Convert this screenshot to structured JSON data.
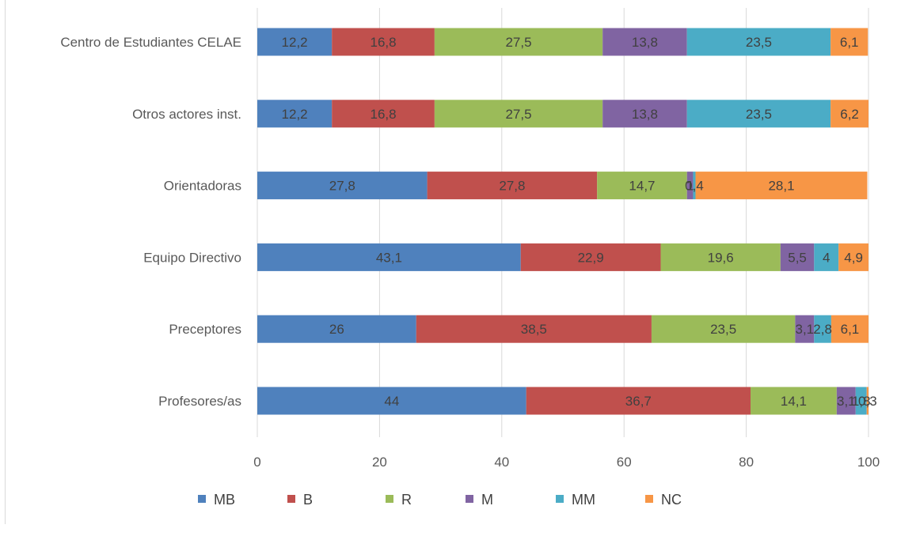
{
  "chart_data": {
    "type": "bar",
    "orientation": "horizontal",
    "stacked": true,
    "categories": [
      "Profesores/as",
      "Preceptores",
      "Equipo Directivo",
      "Orientadoras",
      "Otros actores inst.",
      "Centro de Estudiantes CELAE"
    ],
    "series": [
      {
        "name": "MB",
        "color": "#4f81bd",
        "values": [
          44,
          26,
          43.1,
          27.8,
          12.2,
          12.2
        ],
        "labels": [
          "44",
          "26",
          "43,1",
          "27,8",
          "12,2",
          "12,2"
        ]
      },
      {
        "name": "B",
        "color": "#c0504d",
        "values": [
          36.7,
          38.5,
          22.9,
          27.8,
          16.8,
          16.8
        ],
        "labels": [
          "36,7",
          "38,5",
          "22,9",
          "27,8",
          "16,8",
          "16,8"
        ]
      },
      {
        "name": "R",
        "color": "#9bbb59",
        "values": [
          14.1,
          23.5,
          19.6,
          14.7,
          27.5,
          27.5
        ],
        "labels": [
          "14,1",
          "23,5",
          "19,6",
          "14,7",
          "27,5",
          "27,5"
        ]
      },
      {
        "name": "M",
        "color": "#8064a2",
        "values": [
          3.1,
          3.1,
          5.5,
          1,
          13.8,
          13.8
        ],
        "labels": [
          "3,1",
          "3,1",
          "5,5",
          "1",
          "13,8",
          "13,8"
        ]
      },
      {
        "name": "MM",
        "color": "#4bacc6",
        "values": [
          1.8,
          2.8,
          4,
          0.4,
          23.5,
          23.5
        ],
        "labels": [
          "1,8",
          "2,8",
          "4",
          "0,4",
          "23,5",
          "23,5"
        ]
      },
      {
        "name": "NC",
        "color": "#f79646",
        "values": [
          0.3,
          6.1,
          4.9,
          28.1,
          6.2,
          6.1
        ],
        "labels": [
          "0,3",
          "6,1",
          "4,9",
          "28,1",
          "6,2",
          "6,1"
        ]
      }
    ],
    "xlim": [
      0,
      100
    ],
    "xticks": [
      "0",
      "20",
      "40",
      "60",
      "80",
      "100"
    ],
    "grid": true,
    "legend": "bottom"
  }
}
